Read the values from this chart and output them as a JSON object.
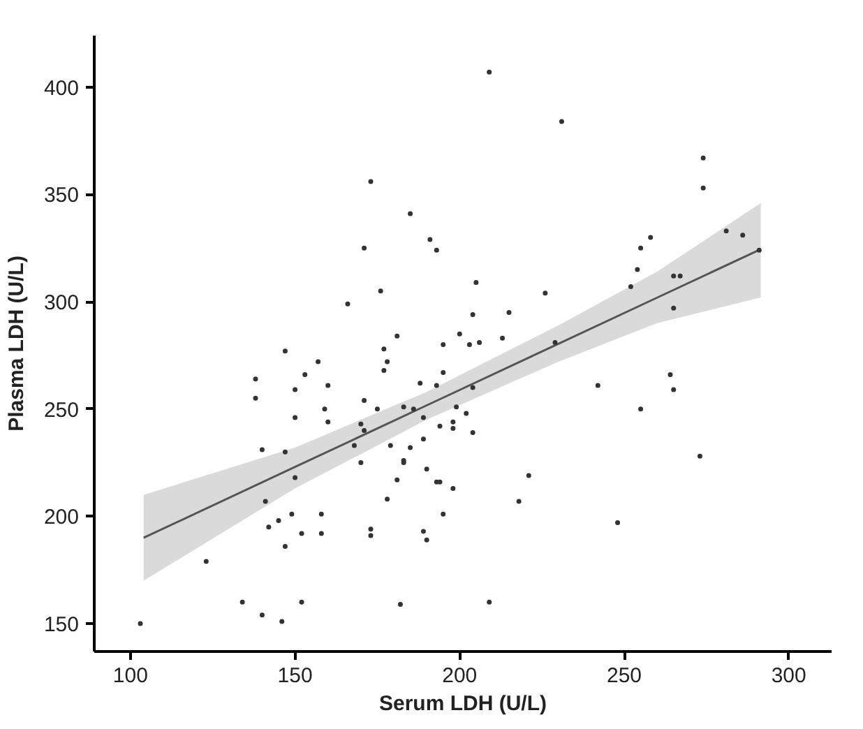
{
  "chart_data": {
    "type": "scatter",
    "xlabel": "Serum LDH (U/L)",
    "ylabel": "Plasma LDH (U/L)",
    "xlim": [
      89,
      313
    ],
    "ylim": [
      137,
      424
    ],
    "xticks": [
      100,
      150,
      200,
      250,
      300
    ],
    "yticks": [
      150,
      200,
      250,
      300,
      350,
      400
    ],
    "grid": false,
    "series": [
      {
        "marker": "circle",
        "color": "#333333",
        "x": [
          209,
          231,
          173,
          185,
          274,
          274,
          171,
          191,
          193,
          281,
          286,
          258,
          255,
          254,
          252,
          265,
          267,
          291,
          265,
          176,
          166,
          205,
          226,
          204,
          215,
          181,
          195,
          200,
          203,
          206,
          213,
          229,
          147,
          177,
          178,
          177,
          157,
          153,
          138,
          160,
          150,
          188,
          195,
          193,
          204,
          242,
          264,
          265,
          138,
          171,
          159,
          175,
          183,
          186,
          199,
          202,
          150,
          160,
          170,
          171,
          189,
          198,
          194,
          198,
          255,
          204,
          140,
          147,
          168,
          179,
          185,
          189,
          170,
          183,
          183,
          190,
          273,
          150,
          181,
          193,
          194,
          198,
          221,
          141,
          178,
          218,
          195,
          149,
          158,
          248,
          142,
          145,
          152,
          158,
          173,
          173,
          189,
          190,
          147,
          123,
          134,
          152,
          182,
          209,
          140,
          146,
          103
        ],
        "values": [
          407,
          384,
          356,
          341,
          367,
          353,
          325,
          329,
          324,
          333,
          331,
          330,
          325,
          315,
          307,
          312,
          312,
          324,
          297,
          305,
          299,
          309,
          304,
          294,
          295,
          284,
          280,
          285,
          280,
          281,
          283,
          281,
          277,
          278,
          272,
          268,
          272,
          266,
          264,
          261,
          259,
          262,
          267,
          261,
          260,
          261,
          266,
          259,
          255,
          254,
          250,
          250,
          251,
          250,
          251,
          248,
          246,
          244,
          243,
          240,
          246,
          244,
          242,
          241,
          250,
          239,
          231,
          230,
          233,
          233,
          232,
          236,
          225,
          226,
          225,
          222,
          228,
          218,
          217,
          216,
          216,
          213,
          219,
          207,
          208,
          207,
          201,
          201,
          201,
          197,
          195,
          198,
          192,
          192,
          194,
          191,
          193,
          189,
          186,
          179,
          160,
          160,
          159,
          160,
          154,
          151,
          150
        ]
      },
      {
        "type": "line",
        "marker": "none",
        "line_style": "solid",
        "color": "#555555",
        "x": [
          104,
          150,
          190,
          230,
          260,
          291.5
        ],
        "values": [
          190,
          223,
          251.7,
          280.4,
          301.9,
          324.5
        ],
        "lower": [
          170,
          213,
          245,
          272,
          290,
          302
        ],
        "upper": [
          210,
          232,
          258,
          289,
          314,
          346
        ]
      }
    ]
  }
}
